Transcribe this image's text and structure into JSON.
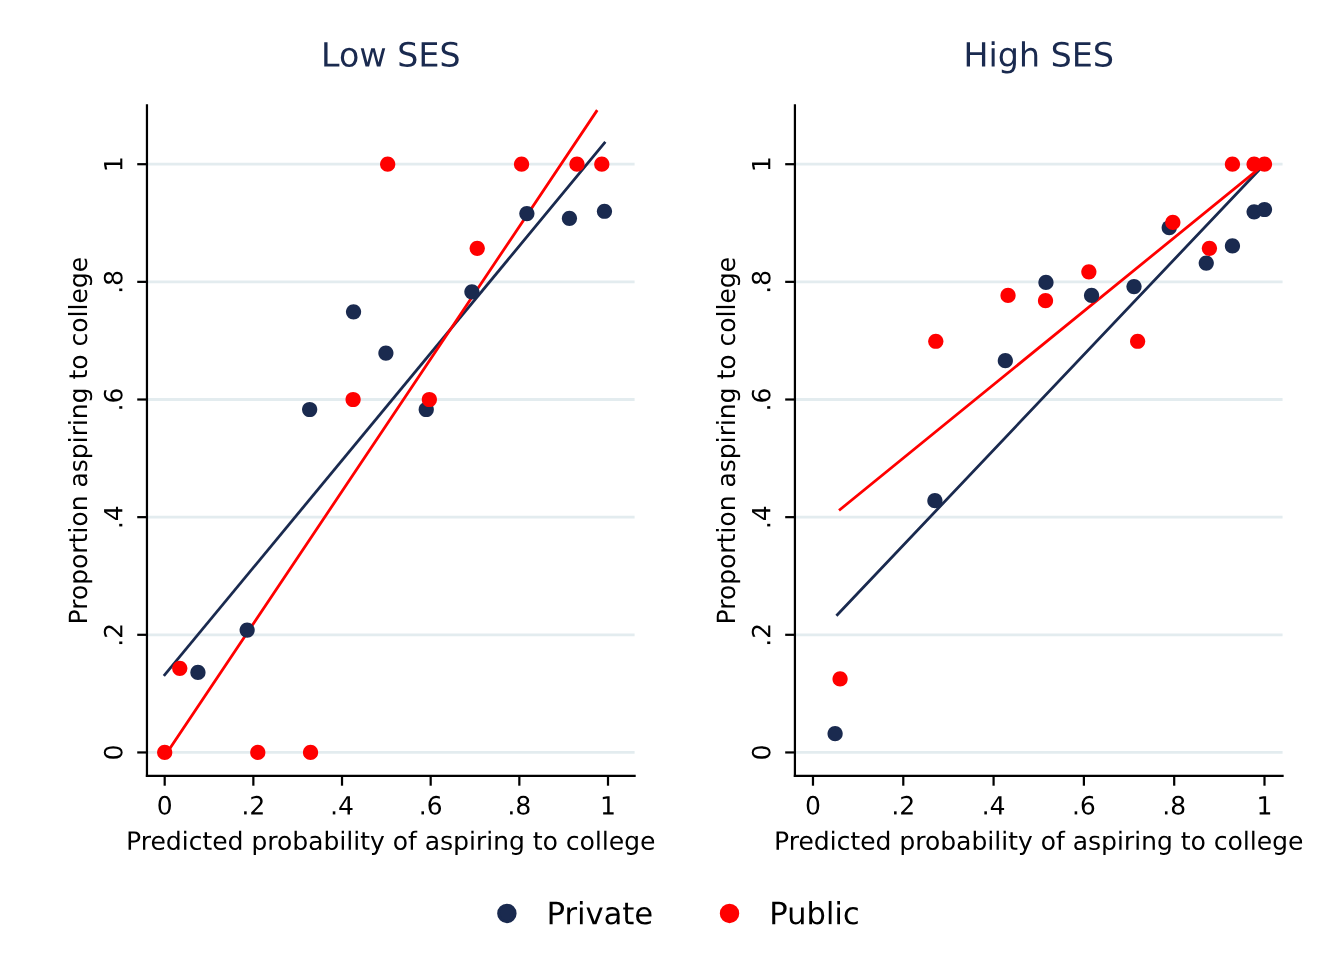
{
  "chart_data": [
    {
      "type": "scatter",
      "title": "Low SES",
      "xlabel": "Predicted probability of aspiring to college",
      "ylabel": "Proportion aspiring to college",
      "xlim": [
        -0.04,
        1.06
      ],
      "ylim": [
        -0.04,
        1.1
      ],
      "xticks": [
        0,
        {
          "value": 0.2,
          "label": ".2"
        },
        {
          "value": 0.4,
          "label": ".4"
        },
        {
          "value": 0.6,
          "label": ".6"
        },
        {
          "value": 0.8,
          "label": ".8"
        },
        1
      ],
      "yticks": [
        0,
        {
          "value": 0.2,
          "label": ".2"
        },
        {
          "value": 0.4,
          "label": ".4"
        },
        {
          "value": 0.6,
          "label": ".6"
        },
        {
          "value": 0.8,
          "label": ".8"
        },
        1
      ],
      "grid": "y",
      "legend": "bottom",
      "series": [
        {
          "name": "Private",
          "color": "#1a2a4f",
          "marker": "circle",
          "x": [
            0.075,
            0.186,
            0.327,
            0.426,
            0.499,
            0.59,
            0.693,
            0.817,
            0.913,
            0.992
          ],
          "values": [
            0.136,
            0.208,
            0.583,
            0.749,
            0.679,
            0.583,
            0.783,
            0.916,
            0.908,
            0.92
          ]
        },
        {
          "name": "Public",
          "color": "#ff0000",
          "marker": "circle",
          "x": [
            0,
            0.034,
            0.21,
            0.329,
            0.425,
            0.503,
            0.597,
            0.705,
            0.805,
            0.93,
            0.986
          ],
          "values": [
            0,
            0.143,
            0,
            0,
            0.6,
            1,
            0.6,
            0.857,
            1,
            1,
            1
          ]
        },
        {
          "type": "line",
          "color": "#1a2a4f",
          "x": [
            0,
            0.992
          ],
          "values": [
            0.132,
            1.036
          ]
        },
        {
          "type": "line",
          "color": "#ff0000",
          "x": [
            0.01,
            0.974
          ],
          "values": [
            0.005,
            1.09
          ]
        }
      ]
    },
    {
      "type": "scatter",
      "title": "High SES",
      "xlabel": "Predicted probability of aspiring to college",
      "ylabel": "Proportion aspiring to college",
      "xlim": [
        -0.04,
        1.04
      ],
      "ylim": [
        -0.04,
        1.1
      ],
      "xticks": [
        0,
        {
          "value": 0.2,
          "label": ".2"
        },
        {
          "value": 0.4,
          "label": ".4"
        },
        {
          "value": 0.6,
          "label": ".6"
        },
        {
          "value": 0.8,
          "label": ".8"
        },
        1
      ],
      "yticks": [
        0,
        {
          "value": 0.2,
          "label": ".2"
        },
        {
          "value": 0.4,
          "label": ".4"
        },
        {
          "value": 0.6,
          "label": ".6"
        },
        {
          "value": 0.8,
          "label": ".8"
        },
        1
      ],
      "grid": "y",
      "legend": "bottom",
      "series": [
        {
          "name": "Private",
          "color": "#1a2a4f",
          "marker": "circle",
          "x": [
            0.049,
            0.27,
            0.426,
            0.516,
            0.617,
            0.711,
            0.789,
            0.871,
            0.929,
            0.977,
            1.0
          ],
          "values": [
            0.032,
            0.428,
            0.666,
            0.799,
            0.777,
            0.792,
            0.892,
            0.832,
            0.861,
            0.919,
            0.923
          ]
        },
        {
          "name": "Public",
          "color": "#ff0000",
          "marker": "circle",
          "x": [
            0.06,
            0.272,
            0.432,
            0.515,
            0.611,
            0.719,
            0.797,
            0.878,
            0.929,
            0.977,
            1.0
          ],
          "values": [
            0.125,
            0.699,
            0.777,
            0.768,
            0.817,
            0.699,
            0.901,
            0.857,
            1,
            1,
            1
          ]
        },
        {
          "type": "line",
          "color": "#1a2a4f",
          "x": [
            0.054,
            1.0
          ],
          "values": [
            0.234,
            1.0
          ]
        },
        {
          "type": "line",
          "color": "#ff0000",
          "x": [
            0.06,
            1.0
          ],
          "values": [
            0.413,
            1.0
          ]
        }
      ]
    }
  ]
}
